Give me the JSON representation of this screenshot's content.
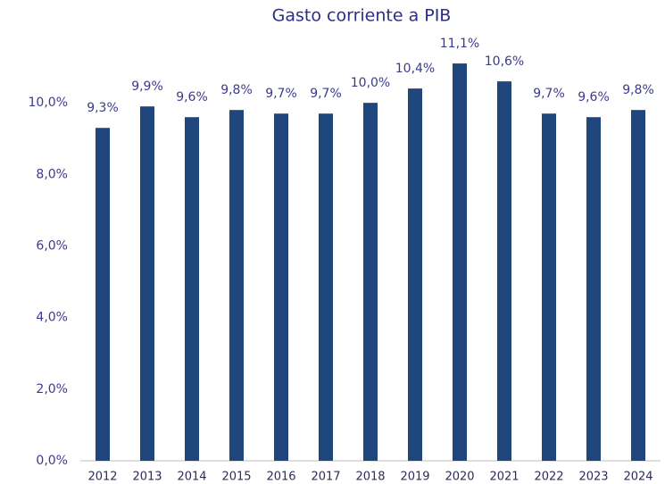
{
  "chart_data": {
    "type": "bar",
    "title": "Gasto corriente a PIB",
    "categories": [
      "2012",
      "2013",
      "2014",
      "2015",
      "2016",
      "2017",
      "2018",
      "2019",
      "2020",
      "2021",
      "2022",
      "2023",
      "2024"
    ],
    "values": [
      9.3,
      9.9,
      9.6,
      9.8,
      9.7,
      9.7,
      10.0,
      10.4,
      11.1,
      10.6,
      9.7,
      9.6,
      9.8
    ],
    "value_labels": [
      "9,3%",
      "9,9%",
      "9,6%",
      "9,8%",
      "9,7%",
      "9,7%",
      "10,0%",
      "10,4%",
      "11,1%",
      "10,6%",
      "9,7%",
      "9,6%",
      "9,8%"
    ],
    "color": "#1f477d",
    "ylim": [
      0,
      12
    ],
    "yticks": [
      {
        "value": 0,
        "label": "0,0%"
      },
      {
        "value": 2,
        "label": "2,0%"
      },
      {
        "value": 4,
        "label": "4,0%"
      },
      {
        "value": 6,
        "label": "6,0%"
      },
      {
        "value": 8,
        "label": "8,0%"
      },
      {
        "value": 10,
        "label": "10,0%"
      }
    ],
    "grid": false
  }
}
